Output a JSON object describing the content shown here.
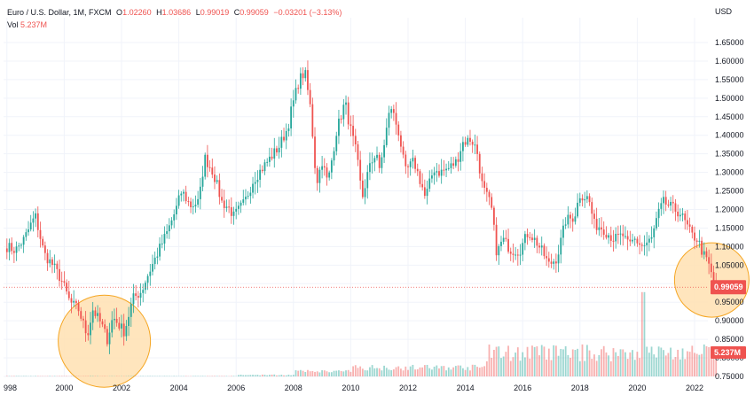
{
  "legend": {
    "symbol": "Euro / U.S. Dollar, 1M, FXCM",
    "open_label": "O",
    "open": "1.02260",
    "high_label": "H",
    "high": "1.03686",
    "low_label": "L",
    "low": "0.99019",
    "close_label": "C",
    "close": "0.99059",
    "change": "−0.03201 (−3.13%)",
    "vol_label": "Vol",
    "vol": "5.237M"
  },
  "colors": {
    "up": "#26a69a",
    "down": "#ef5350",
    "highlight": "#ffe0b2",
    "highlight_border": "#f5a623",
    "grid": "#f0f3fa"
  },
  "chart_data": {
    "type": "candlestick",
    "currency_label": "USD",
    "ylim": [
      0.75,
      1.65
    ],
    "y_ticks": [
      "1.65000",
      "1.60000",
      "1.55000",
      "1.50000",
      "1.45000",
      "1.40000",
      "1.35000",
      "1.30000",
      "1.25000",
      "1.20000",
      "1.15000",
      "1.10000",
      "1.05000",
      "1.00000",
      "0.95000",
      "0.90000",
      "0.85000",
      "0.80000",
      "0.75000"
    ],
    "x_ticks": [
      "998",
      "2000",
      "2002",
      "2004",
      "2006",
      "2008",
      "2010",
      "2012",
      "2014",
      "2016",
      "2018",
      "2020",
      "2022"
    ],
    "last_price_label": "0.99059",
    "last_price": 0.99059,
    "last_volume_label": "5.237M",
    "price_path": [
      [
        1998.0,
        1.1
      ],
      [
        1998.3,
        1.09
      ],
      [
        1998.6,
        1.12
      ],
      [
        1998.9,
        1.17
      ],
      [
        1999.0,
        1.18
      ],
      [
        1999.3,
        1.08
      ],
      [
        1999.6,
        1.05
      ],
      [
        1999.9,
        1.01
      ],
      [
        2000.2,
        0.95
      ],
      [
        2000.5,
        0.93
      ],
      [
        2000.8,
        0.86
      ],
      [
        2001.0,
        0.93
      ],
      [
        2001.3,
        0.89
      ],
      [
        2001.5,
        0.85
      ],
      [
        2001.7,
        0.91
      ],
      [
        2001.9,
        0.89
      ],
      [
        2002.1,
        0.87
      ],
      [
        2002.4,
        0.96
      ],
      [
        2002.7,
        0.98
      ],
      [
        2002.9,
        1.02
      ],
      [
        2003.3,
        1.09
      ],
      [
        2003.6,
        1.14
      ],
      [
        2003.9,
        1.2
      ],
      [
        2004.1,
        1.25
      ],
      [
        2004.4,
        1.21
      ],
      [
        2004.7,
        1.22
      ],
      [
        2004.9,
        1.34
      ],
      [
        2005.2,
        1.3
      ],
      [
        2005.5,
        1.22
      ],
      [
        2005.8,
        1.2
      ],
      [
        2005.9,
        1.18
      ],
      [
        2006.3,
        1.22
      ],
      [
        2006.6,
        1.28
      ],
      [
        2006.9,
        1.31
      ],
      [
        2007.2,
        1.34
      ],
      [
        2007.5,
        1.37
      ],
      [
        2007.8,
        1.42
      ],
      [
        2007.9,
        1.46
      ],
      [
        2008.2,
        1.55
      ],
      [
        2008.4,
        1.57
      ],
      [
        2008.6,
        1.47
      ],
      [
        2008.8,
        1.27
      ],
      [
        2009.0,
        1.33
      ],
      [
        2009.2,
        1.27
      ],
      [
        2009.5,
        1.41
      ],
      [
        2009.8,
        1.49
      ],
      [
        2009.95,
        1.43
      ],
      [
        2010.2,
        1.35
      ],
      [
        2010.4,
        1.23
      ],
      [
        2010.6,
        1.3
      ],
      [
        2010.9,
        1.36
      ],
      [
        2011.0,
        1.3
      ],
      [
        2011.3,
        1.44
      ],
      [
        2011.4,
        1.48
      ],
      [
        2011.7,
        1.4
      ],
      [
        2011.9,
        1.3
      ],
      [
        2012.2,
        1.33
      ],
      [
        2012.5,
        1.26
      ],
      [
        2012.6,
        1.23
      ],
      [
        2012.9,
        1.31
      ],
      [
        2013.1,
        1.3
      ],
      [
        2013.4,
        1.31
      ],
      [
        2013.7,
        1.33
      ],
      [
        2013.9,
        1.38
      ],
      [
        2014.2,
        1.39
      ],
      [
        2014.4,
        1.36
      ],
      [
        2014.6,
        1.26
      ],
      [
        2014.9,
        1.21
      ],
      [
        2015.1,
        1.08
      ],
      [
        2015.3,
        1.12
      ],
      [
        2015.6,
        1.09
      ],
      [
        2015.9,
        1.09
      ],
      [
        2016.2,
        1.14
      ],
      [
        2016.5,
        1.11
      ],
      [
        2016.8,
        1.07
      ],
      [
        2016.9,
        1.05
      ],
      [
        2017.2,
        1.07
      ],
      [
        2017.5,
        1.17
      ],
      [
        2017.8,
        1.18
      ],
      [
        2018.0,
        1.24
      ],
      [
        2018.3,
        1.23
      ],
      [
        2018.5,
        1.16
      ],
      [
        2018.8,
        1.15
      ],
      [
        2018.9,
        1.14
      ],
      [
        2019.2,
        1.12
      ],
      [
        2019.5,
        1.13
      ],
      [
        2019.7,
        1.1
      ],
      [
        2019.9,
        1.12
      ],
      [
        2020.2,
        1.1
      ],
      [
        2020.5,
        1.12
      ],
      [
        2020.7,
        1.18
      ],
      [
        2020.9,
        1.22
      ],
      [
        2021.1,
        1.21
      ],
      [
        2021.3,
        1.2
      ],
      [
        2021.5,
        1.19
      ],
      [
        2021.7,
        1.16
      ],
      [
        2021.9,
        1.13
      ],
      [
        2022.1,
        1.12
      ],
      [
        2022.3,
        1.08
      ],
      [
        2022.5,
        1.05
      ],
      [
        2022.6,
        1.02
      ],
      [
        2022.75,
        0.99059
      ]
    ]
  }
}
